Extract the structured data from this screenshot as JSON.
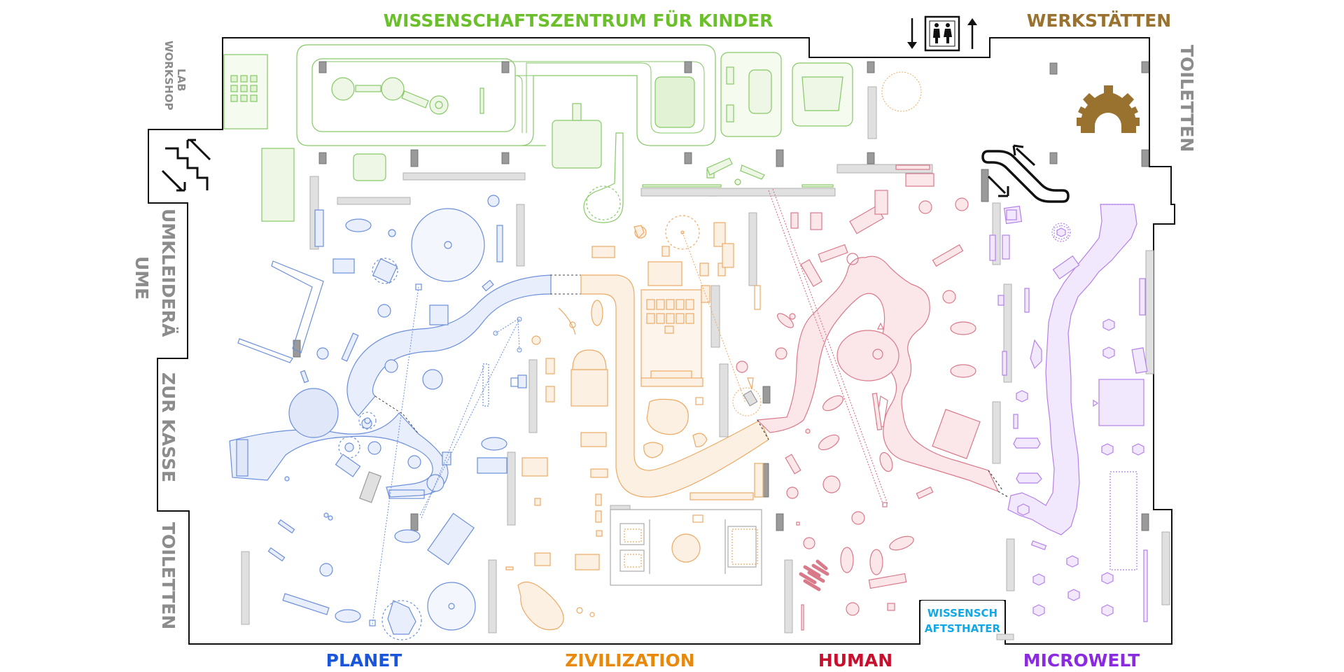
{
  "map": {
    "labels": {
      "top_center": "WISSENSCHAFTSZENTRUM FÜR KINDER",
      "top_right": "WERKSTÄTTEN",
      "right_toilets": "TOILETTEN",
      "left_lab": "LAB",
      "left_workshop": "WORKSHOP",
      "left_changing_1": "UMKLEIDERÄ",
      "left_changing_2": "UME",
      "left_cashier": "ZUR KASSE",
      "left_toilets": "TOILETTEN",
      "theater_1": "WISSENSCH",
      "theater_2": "AFTSTHATER"
    },
    "zones": [
      {
        "id": "planet",
        "name": "PLANET",
        "color": "#1a56db"
      },
      {
        "id": "zivilization",
        "name": "ZIVILIZATION",
        "color": "#e8890c"
      },
      {
        "id": "human",
        "name": "HUMAN",
        "color": "#c8102e"
      },
      {
        "id": "microwelt",
        "name": "MICROWELT",
        "color": "#8a2be2"
      }
    ],
    "colors": {
      "kids_center": "#6bbf2a",
      "workshops": "#9a7230",
      "facility_gray": "#8c8c8c",
      "theater": "#11a8e8",
      "wall": "#111111"
    },
    "icons": [
      "elevator-icon",
      "stairs-icon",
      "escalator-icon",
      "gear-icon"
    ]
  }
}
